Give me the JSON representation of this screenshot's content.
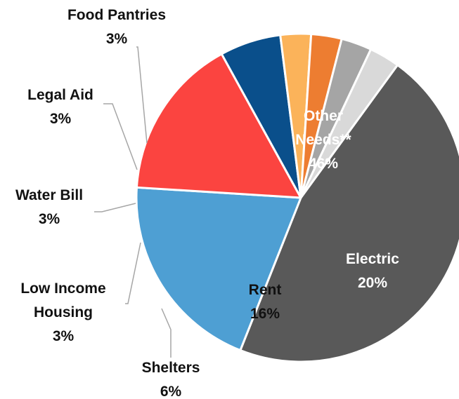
{
  "chart_data": {
    "type": "pie",
    "title": "",
    "slices": [
      {
        "label": "Other Needs**",
        "label_lines": [
          "Other",
          "Needs**"
        ],
        "value": 46,
        "display": "46%",
        "color": "#595959"
      },
      {
        "label": "Electric",
        "label_lines": [
          "Electric"
        ],
        "value": 20,
        "display": "20%",
        "color": "#4e9fd3"
      },
      {
        "label": "Rent",
        "label_lines": [
          "Rent"
        ],
        "value": 16,
        "display": "16%",
        "color": "#fb4440"
      },
      {
        "label": "Shelters",
        "label_lines": [
          "Shelters"
        ],
        "value": 6,
        "display": "6%",
        "color": "#0a4f8b"
      },
      {
        "label": "Low Income Housing",
        "label_lines": [
          "Low Income",
          "Housing"
        ],
        "value": 3,
        "display": "3%",
        "color": "#fbb35a"
      },
      {
        "label": "Water Bill",
        "label_lines": [
          "Water Bill"
        ],
        "value": 3,
        "display": "3%",
        "color": "#ed7d31"
      },
      {
        "label": "Legal Aid",
        "label_lines": [
          "Legal Aid"
        ],
        "value": 3,
        "display": "3%",
        "color": "#a5a5a5"
      },
      {
        "label": "Food Pantries",
        "label_lines": [
          "Food Pantries"
        ],
        "value": 3,
        "display": "3%",
        "color": "#d9d9d9"
      }
    ]
  }
}
